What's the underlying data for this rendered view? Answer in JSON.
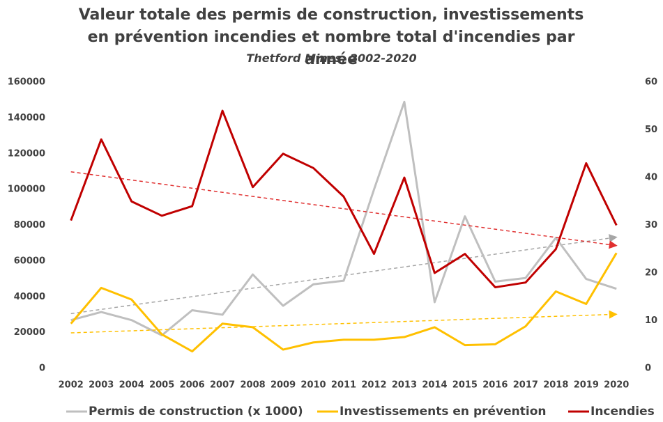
{
  "chart_data": {
    "type": "line",
    "title": "Valeur totale des permis de construction, investissements en prévention incendies et nombre total d'incendies par année",
    "subtitle": "Thetford Mines, 2002-2020",
    "categories": [
      "2002",
      "2003",
      "2004",
      "2005",
      "2006",
      "2007",
      "2008",
      "2009",
      "2010",
      "2011",
      "2012",
      "2013",
      "2014",
      "2015",
      "2016",
      "2017",
      "2018",
      "2019",
      "2020"
    ],
    "series": [
      {
        "name": "Permis de construction (x 1000)",
        "color": "#bfbfbf",
        "values": [
          27000,
          31500,
          27000,
          18500,
          32500,
          30000,
          52500,
          35000,
          47000,
          49000,
          100000,
          149000,
          37000,
          85000,
          48500,
          50500,
          73000,
          50000,
          44500
        ]
      },
      {
        "name": "Investissements en prévention",
        "color": "#ffc000",
        "values": [
          25000,
          45000,
          38500,
          19000,
          9500,
          25000,
          23000,
          10500,
          14500,
          16000,
          16000,
          17500,
          23000,
          13000,
          13500,
          23500,
          43000,
          36000,
          64500
        ]
      },
      {
        "name": "Incendies",
        "color": "#c00000",
        "axis": "y2",
        "values": [
          31,
          48,
          35,
          32,
          34,
          54,
          38,
          45,
          42,
          36,
          24,
          40,
          20,
          24,
          17,
          18,
          25,
          43,
          30
        ]
      }
    ],
    "ylim": [
      0,
      160000
    ],
    "yticks": [
      0,
      20000,
      40000,
      60000,
      80000,
      100000,
      120000,
      140000,
      160000
    ],
    "y2lim": [
      0,
      60
    ],
    "y2ticks": [
      0,
      10,
      20,
      30,
      40,
      50,
      60
    ],
    "trendline": true,
    "legend": "bottom",
    "grid": false
  }
}
